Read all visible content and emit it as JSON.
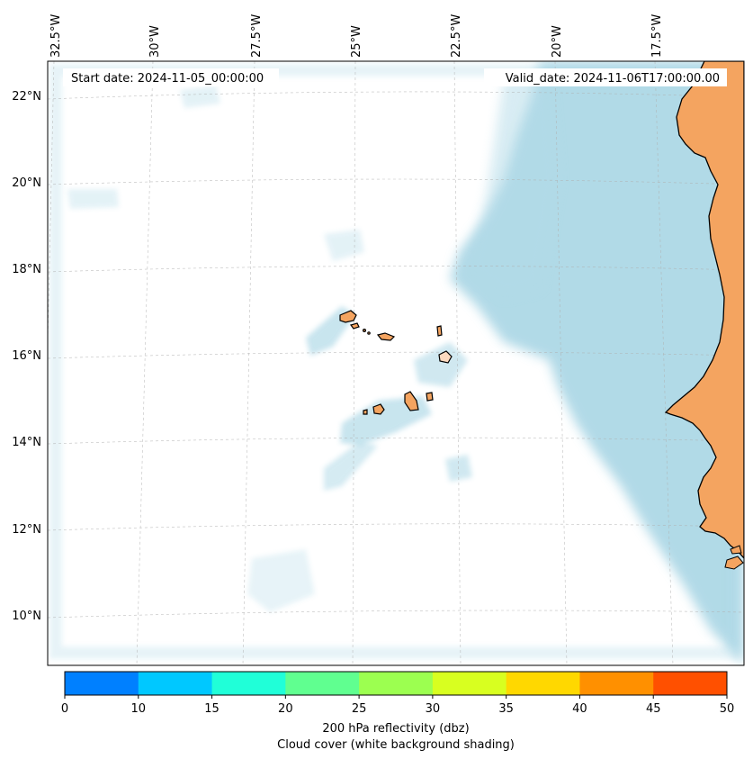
{
  "header": {
    "start_date": "Start date: 2024-11-05_00:00:00",
    "valid_date": "Valid_date: 2024-11-06T17:00:00.00"
  },
  "axes": {
    "lon_labels": [
      "32.5°W",
      "30°W",
      "27.5°W",
      "25°W",
      "22.5°W",
      "20°W",
      "17.5°W"
    ],
    "lat_labels": [
      "22°N",
      "20°N",
      "18°N",
      "16°N",
      "14°N",
      "12°N",
      "10°N"
    ]
  },
  "colorbar": {
    "ticks": [
      "0",
      "10",
      "15",
      "20",
      "25",
      "30",
      "35",
      "40",
      "45",
      "50"
    ],
    "colors": [
      "#0080ff",
      "#00c8ff",
      "#20ffd8",
      "#60ff90",
      "#9cff50",
      "#d8ff20",
      "#ffd800",
      "#ff9000",
      "#ff5000"
    ],
    "label_line1": "200 hPa reflectivity (dbz)",
    "label_line2": "Cloud cover (white background shading)"
  },
  "colors": {
    "land": "#f4a460",
    "cloud": "#add8e6",
    "coast": "#000000"
  }
}
